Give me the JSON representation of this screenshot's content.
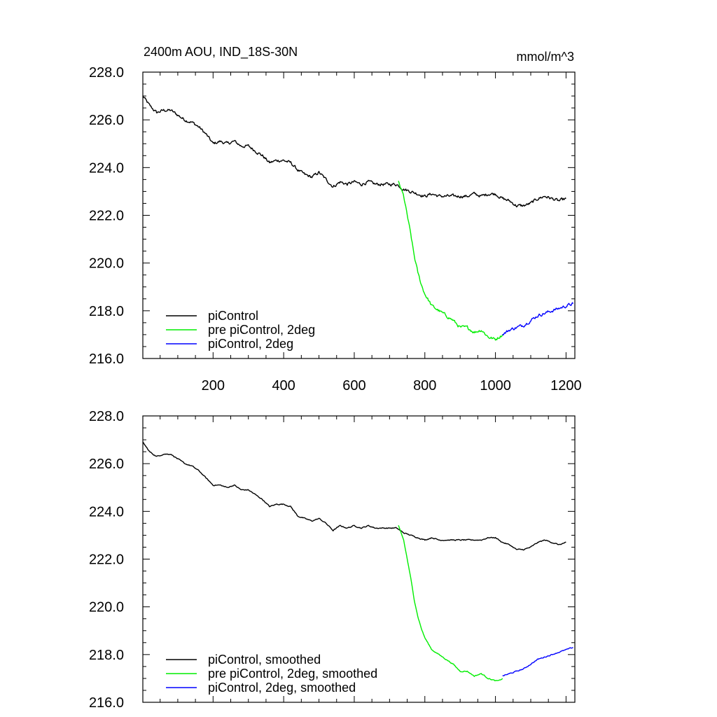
{
  "figure": {
    "title_left": "2400m AOU, IND_18S-30N",
    "title_right": "mmol/m^3"
  },
  "chart_data": [
    {
      "type": "line",
      "title": "2400m AOU, IND_18S-30N",
      "units": "mmol/m^3",
      "xlim": [
        1,
        1225
      ],
      "ylim": [
        216.0,
        228.0
      ],
      "x_ticks": [
        200,
        400,
        600,
        800,
        1000,
        1200
      ],
      "x_tick_labels": [
        "200",
        "400",
        "600",
        "800",
        "1000",
        "1200"
      ],
      "y_ticks": [
        216.0,
        218.0,
        220.0,
        222.0,
        224.0,
        226.0,
        228.0
      ],
      "y_tick_labels": [
        "216.0",
        "218.0",
        "220.0",
        "222.0",
        "224.0",
        "226.0",
        "228.0"
      ],
      "legend_position": "bottom-left",
      "grid": false,
      "series": [
        {
          "name": "piControl",
          "color": "#000000",
          "noise": 0.12,
          "x": [
            1,
            20,
            40,
            60,
            80,
            100,
            120,
            140,
            160,
            180,
            200,
            220,
            240,
            260,
            280,
            300,
            320,
            340,
            360,
            380,
            400,
            420,
            440,
            460,
            480,
            500,
            520,
            540,
            560,
            580,
            600,
            620,
            640,
            660,
            680,
            700,
            720,
            740,
            760,
            780,
            800,
            820,
            840,
            860,
            880,
            900,
            920,
            940,
            960,
            980,
            1000,
            1020,
            1040,
            1060,
            1080,
            1100,
            1120,
            1140,
            1160,
            1180,
            1200
          ],
          "y": [
            227.0,
            226.6,
            226.3,
            226.4,
            226.4,
            226.2,
            226.0,
            225.9,
            225.7,
            225.4,
            225.0,
            225.1,
            225.0,
            225.1,
            224.9,
            224.9,
            224.7,
            224.5,
            224.2,
            224.3,
            224.3,
            224.2,
            223.9,
            223.7,
            223.6,
            223.8,
            223.5,
            223.2,
            223.4,
            223.3,
            223.4,
            223.3,
            223.4,
            223.3,
            223.3,
            223.3,
            223.3,
            223.1,
            223.0,
            222.9,
            222.8,
            222.9,
            222.8,
            222.8,
            222.8,
            222.8,
            222.8,
            222.9,
            222.8,
            222.9,
            222.9,
            222.7,
            222.6,
            222.4,
            222.4,
            222.5,
            222.7,
            222.8,
            222.7,
            222.6,
            222.7
          ]
        },
        {
          "name": "pre piControl, 2deg",
          "color": "#00ee00",
          "noise": 0.12,
          "x": [
            725,
            740,
            760,
            770,
            780,
            790,
            800,
            820,
            840,
            860,
            880,
            900,
            920,
            940,
            960,
            980,
            1000,
            1010,
            1020
          ],
          "y": [
            223.4,
            222.8,
            221.2,
            220.3,
            219.6,
            219.1,
            218.7,
            218.2,
            218.0,
            217.8,
            217.6,
            217.3,
            217.3,
            217.1,
            217.2,
            216.9,
            216.8,
            216.9,
            217.0
          ]
        },
        {
          "name": "piControl, 2deg",
          "color": "#0000ff",
          "noise": 0.12,
          "x": [
            1020,
            1040,
            1060,
            1080,
            1100,
            1120,
            1140,
            1160,
            1180,
            1200,
            1220
          ],
          "y": [
            217.0,
            217.2,
            217.3,
            217.4,
            217.6,
            217.8,
            217.9,
            218.0,
            218.1,
            218.2,
            218.3
          ]
        }
      ]
    },
    {
      "type": "line",
      "xlim": [
        1,
        1225
      ],
      "ylim": [
        216.0,
        228.0
      ],
      "x_ticks": [
        200,
        400,
        600,
        800,
        1000,
        1200
      ],
      "y_ticks": [
        216.0,
        218.0,
        220.0,
        222.0,
        224.0,
        226.0,
        228.0
      ],
      "y_tick_labels": [
        "216.0",
        "218.0",
        "220.0",
        "222.0",
        "224.0",
        "226.0",
        "228.0"
      ],
      "legend_position": "bottom-left",
      "grid": false,
      "series": [
        {
          "name": "piControl, smoothed",
          "color": "#000000",
          "noise": 0.04,
          "x": [
            1,
            20,
            40,
            60,
            80,
            100,
            120,
            140,
            160,
            180,
            200,
            220,
            240,
            260,
            280,
            300,
            320,
            340,
            360,
            380,
            400,
            420,
            440,
            460,
            480,
            500,
            520,
            540,
            560,
            580,
            600,
            620,
            640,
            660,
            680,
            700,
            720,
            740,
            760,
            780,
            800,
            820,
            840,
            860,
            880,
            900,
            920,
            940,
            960,
            980,
            1000,
            1020,
            1040,
            1060,
            1080,
            1100,
            1120,
            1140,
            1160,
            1180,
            1200
          ],
          "y": [
            226.9,
            226.5,
            226.3,
            226.4,
            226.4,
            226.2,
            226.0,
            225.9,
            225.7,
            225.4,
            225.1,
            225.1,
            225.0,
            225.1,
            224.9,
            224.9,
            224.7,
            224.5,
            224.2,
            224.3,
            224.3,
            224.2,
            223.8,
            223.7,
            223.6,
            223.7,
            223.5,
            223.2,
            223.4,
            223.3,
            223.4,
            223.3,
            223.4,
            223.3,
            223.3,
            223.3,
            223.3,
            223.1,
            223.0,
            222.9,
            222.8,
            222.9,
            222.8,
            222.8,
            222.8,
            222.8,
            222.8,
            222.8,
            222.8,
            222.9,
            222.9,
            222.7,
            222.6,
            222.4,
            222.4,
            222.5,
            222.7,
            222.8,
            222.7,
            222.6,
            222.7
          ]
        },
        {
          "name": "pre piControl, 2deg, smoothed",
          "color": "#00ee00",
          "noise": 0.04,
          "x": [
            725,
            740,
            760,
            770,
            780,
            790,
            800,
            820,
            840,
            860,
            880,
            900,
            920,
            940,
            960,
            980,
            1000,
            1010,
            1020
          ],
          "y": [
            223.4,
            222.8,
            221.2,
            220.3,
            219.6,
            219.1,
            218.7,
            218.2,
            218.0,
            217.8,
            217.6,
            217.3,
            217.3,
            217.1,
            217.2,
            217.0,
            216.9,
            216.9,
            217.0
          ]
        },
        {
          "name": "piControl, 2deg, smoothed",
          "color": "#0000ff",
          "noise": 0.04,
          "x": [
            1020,
            1040,
            1060,
            1080,
            1100,
            1120,
            1140,
            1160,
            1180,
            1200,
            1220
          ],
          "y": [
            217.1,
            217.2,
            217.3,
            217.4,
            217.6,
            217.8,
            217.9,
            218.0,
            218.1,
            218.2,
            218.3
          ]
        }
      ]
    }
  ]
}
